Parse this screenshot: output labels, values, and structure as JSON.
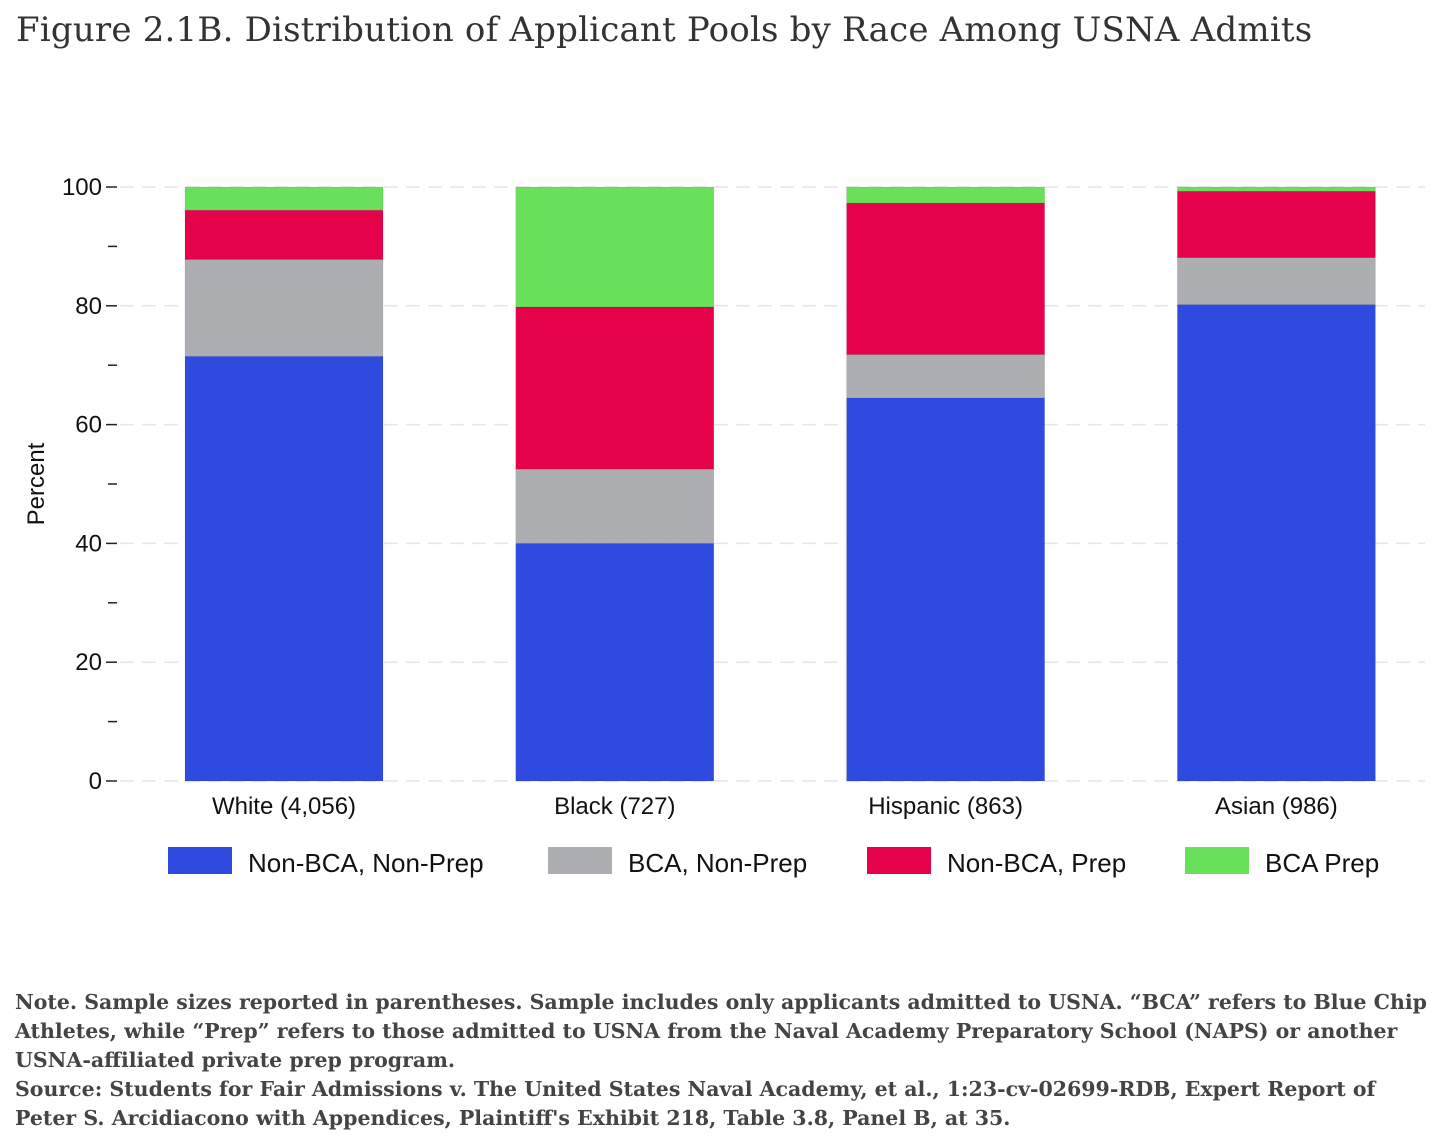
{
  "title": "Figure 2.1B. Distribution of Applicant Pools by Race Among USNA Admits",
  "chart_data": {
    "type": "bar",
    "stacked": true,
    "categories": [
      "White (4,056)",
      "Black (727)",
      "Hispanic (863)",
      "Asian (986)"
    ],
    "series": [
      {
        "name": "Non-BCA, Non-Prep",
        "color": "#2f4bdf",
        "values": [
          71.5,
          40.0,
          64.5,
          80.2
        ]
      },
      {
        "name": "BCA, Non-Prep",
        "color": "#adaeb1",
        "values": [
          16.3,
          12.5,
          7.3,
          7.9
        ]
      },
      {
        "name": "Non-BCA, Prep",
        "color": "#e6024a",
        "values": [
          8.3,
          27.3,
          25.5,
          11.2
        ]
      },
      {
        "name": "BCA Prep",
        "color": "#69e05a",
        "values": [
          3.9,
          20.2,
          2.7,
          0.7
        ]
      }
    ],
    "ylabel": "Percent",
    "xlabel": "",
    "ylim": [
      0,
      100
    ],
    "yticks": [
      "0",
      "20",
      "40",
      "60",
      "80",
      "100"
    ],
    "legend_position": "bottom",
    "grid": true
  },
  "note": {
    "text": "Note. Sample sizes reported in parentheses. Sample includes only applicants admitted to USNA. “BCA” refers to Blue Chip Athletes, while “Prep” refers to those admitted to USNA from the Naval Academy Preparatory School (NAPS) or another USNA-affiliated private prep program.",
    "source": "Source: Students for Fair Admissions v. The United States Naval Academy, et al., 1:23-cv-02699-RDB, Expert Report of Peter S. Arcidiacono with Appendices, Plaintiff's Exhibit 218, Table 3.8, Panel B, at 35."
  }
}
